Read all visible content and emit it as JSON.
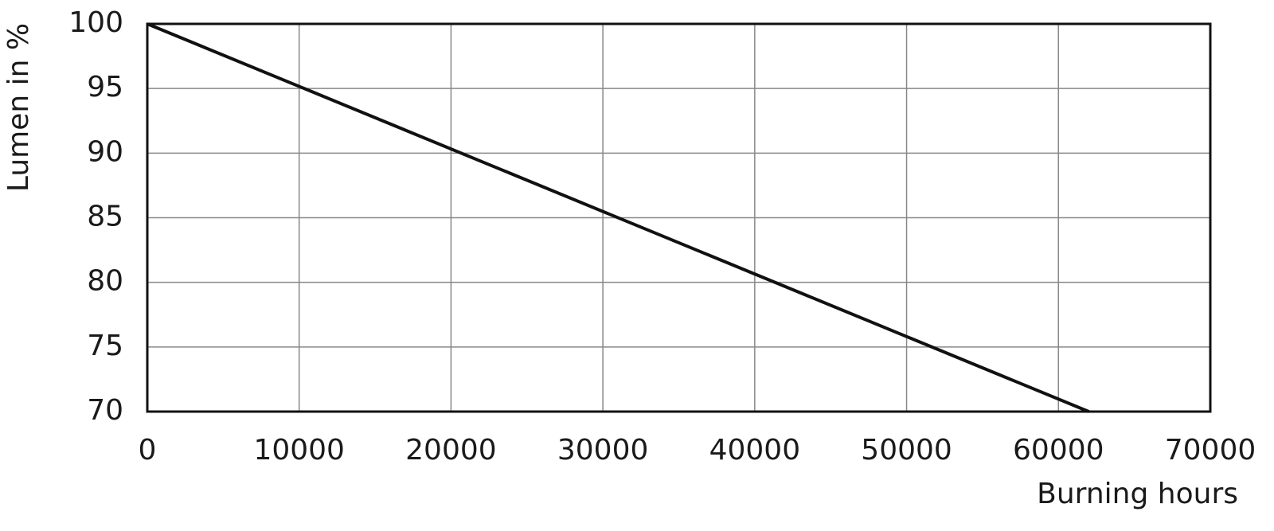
{
  "chart_data": {
    "type": "line",
    "x_label": "Burning hours",
    "y_label": "Lumen in %",
    "series": [
      {
        "name": "Lumen",
        "color": "#111111",
        "x": [
          0,
          62000
        ],
        "values": [
          100,
          70
        ]
      }
    ],
    "xlim": [
      0,
      70000
    ],
    "xticks": [
      0,
      10000,
      20000,
      30000,
      40000,
      50000,
      60000,
      70000
    ],
    "ylim": [
      70,
      100
    ],
    "yticks": [
      70,
      75,
      80,
      85,
      90,
      95,
      100
    ],
    "grid": true
  }
}
